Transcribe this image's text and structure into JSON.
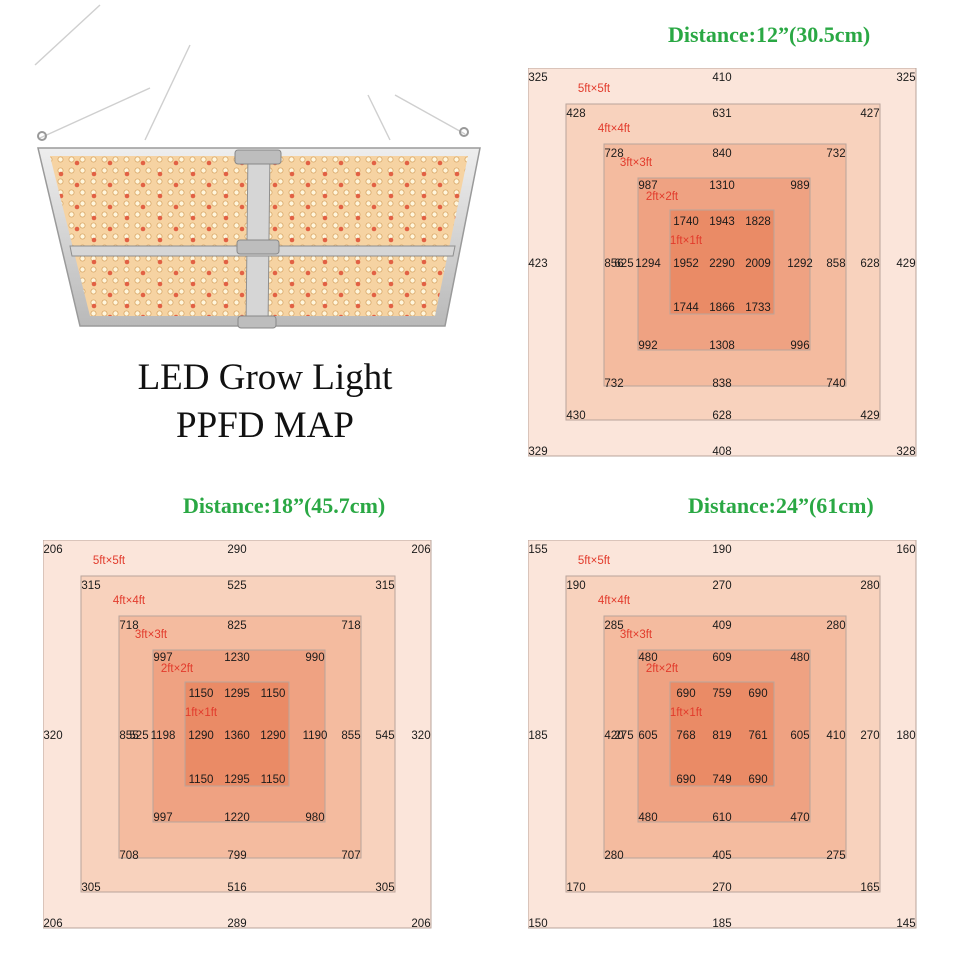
{
  "title": {
    "line1": "LED Grow Light",
    "line2": "PPFD MAP"
  },
  "colors": {
    "accent_green": "#2aa844",
    "zone_label_red": "#e23b2c",
    "zone_fills": [
      "#fbe5da",
      "#f8d2bd",
      "#f4bb9f",
      "#efa282",
      "#ea8b66"
    ],
    "zone_stroke": "#b9a49b"
  },
  "product_image": {
    "icon": "led-grow-light-panel-icon"
  },
  "chart_data": [
    {
      "type": "heatmap",
      "title": "Distance:12”(30.5cm)",
      "zones": [
        "5ft×5ft",
        "4ft×4ft",
        "3ft×3ft",
        "2ft×2ft",
        "1ft×1ft"
      ],
      "unit": "PPFD",
      "rings": {
        "5ft": {
          "tl": "325",
          "t": "410",
          "tr": "325",
          "l": "423",
          "r": "429",
          "bl": "329",
          "b": "408",
          "br": "328"
        },
        "4ft": {
          "tl": "428",
          "t": "631",
          "tr": "427",
          "l": "625",
          "r": "628",
          "bl": "430",
          "b": "628",
          "br": "429"
        },
        "3ft": {
          "tl": "728",
          "t": "840",
          "tr": "732",
          "l": "856",
          "r": "858",
          "bl": "732",
          "b": "838",
          "br": "740"
        },
        "2ft": {
          "tl": "987",
          "t": "1310",
          "tr": "989",
          "l": "1294",
          "r": "1292",
          "bl": "992",
          "b": "1308",
          "br": "996"
        }
      },
      "center": {
        "top": [
          "1740",
          "1943",
          "1828"
        ],
        "mid": [
          "1952",
          "2290",
          "2009"
        ],
        "bot": [
          "1744",
          "1866",
          "1733"
        ]
      }
    },
    {
      "type": "heatmap",
      "title": "Distance:18”(45.7cm)",
      "zones": [
        "5ft×5ft",
        "4ft×4ft",
        "3ft×3ft",
        "2ft×2ft",
        "1ft×1ft"
      ],
      "unit": "PPFD",
      "rings": {
        "5ft": {
          "tl": "206",
          "t": "290",
          "tr": "206",
          "l": "320",
          "r": "320",
          "bl": "206",
          "b": "289",
          "br": "206"
        },
        "4ft": {
          "tl": "315",
          "t": "525",
          "tr": "315",
          "l": "525",
          "r": "545",
          "bl": "305",
          "b": "516",
          "br": "305"
        },
        "3ft": {
          "tl": "718",
          "t": "825",
          "tr": "718",
          "l": "855",
          "r": "855",
          "bl": "708",
          "b": "799",
          "br": "707"
        },
        "2ft": {
          "tl": "997",
          "t": "1230",
          "tr": "990",
          "l": "1198",
          "r": "1190",
          "bl": "997",
          "b": "1220",
          "br": "980"
        }
      },
      "center": {
        "top": [
          "1150",
          "1295",
          "1150"
        ],
        "mid": [
          "1290",
          "1360",
          "1290"
        ],
        "bot": [
          "1150",
          "1295",
          "1150"
        ]
      }
    },
    {
      "type": "heatmap",
      "title": "Distance:24”(61cm)",
      "zones": [
        "5ft×5ft",
        "4ft×4ft",
        "3ft×3ft",
        "2ft×2ft",
        "1ft×1ft"
      ],
      "unit": "PPFD",
      "rings": {
        "5ft": {
          "tl": "155",
          "t": "190",
          "tr": "160",
          "l": "185",
          "r": "180",
          "bl": "150",
          "b": "185",
          "br": "145"
        },
        "4ft": {
          "tl": "190",
          "t": "270",
          "tr": "280",
          "l": "275",
          "r": "270",
          "bl": "170",
          "b": "270",
          "br": "165"
        },
        "3ft": {
          "tl": "285",
          "t": "409",
          "tr": "280",
          "l": "420",
          "r": "410",
          "bl": "280",
          "b": "405",
          "br": "275"
        },
        "2ft": {
          "tl": "480",
          "t": "609",
          "tr": "480",
          "l": "605",
          "r": "605",
          "bl": "480",
          "b": "610",
          "br": "470"
        }
      },
      "center": {
        "top": [
          "690",
          "759",
          "690"
        ],
        "mid": [
          "768",
          "819",
          "761"
        ],
        "bot": [
          "690",
          "749",
          "690"
        ]
      }
    }
  ]
}
